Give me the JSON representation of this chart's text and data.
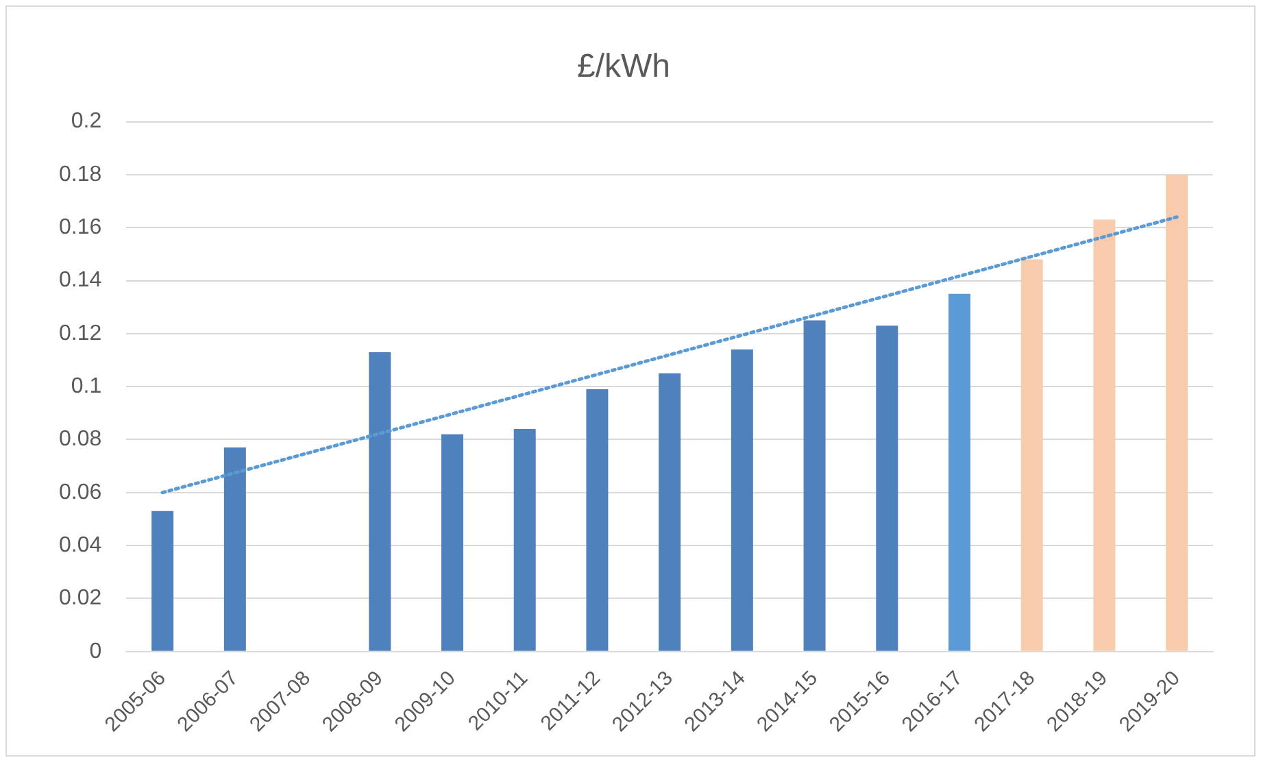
{
  "chart_data": {
    "type": "bar",
    "title": "£/kWh",
    "categories": [
      "2005-06",
      "2006-07",
      "2007-08",
      "2008-09",
      "2009-10",
      "2010-11",
      "2011-12",
      "2012-13",
      "2013-14",
      "2014-15",
      "2015-16",
      "2016-17",
      "2017-18",
      "2018-19",
      "2019-20"
    ],
    "series": [
      {
        "values": [
          0.053,
          0.077,
          null,
          0.113,
          0.082,
          0.084,
          0.099,
          0.105,
          0.114,
          0.125,
          0.123,
          0.135,
          0.148,
          0.163,
          0.18
        ],
        "colors": [
          "#4f81bd",
          "#4f81bd",
          "#4f81bd",
          "#4f81bd",
          "#4f81bd",
          "#4f81bd",
          "#4f81bd",
          "#4f81bd",
          "#4f81bd",
          "#4f81bd",
          "#4f81bd",
          "#5b9bd5",
          "#f8cbad",
          "#f8cbad",
          "#f8cbad"
        ]
      },
      {
        "type": "line",
        "values": [
          0.06,
          null,
          null,
          null,
          null,
          null,
          null,
          null,
          null,
          null,
          null,
          null,
          null,
          null,
          0.164
        ],
        "color": "#5b9bd5",
        "line_style": "dotted",
        "marker": "none"
      }
    ],
    "ylim": [
      0,
      0.2
    ],
    "yticks": [
      0,
      0.02,
      0.04,
      0.06,
      0.08,
      0.1,
      0.12,
      0.14,
      0.16,
      0.18,
      0.2
    ],
    "grid": "y",
    "legend": false
  }
}
